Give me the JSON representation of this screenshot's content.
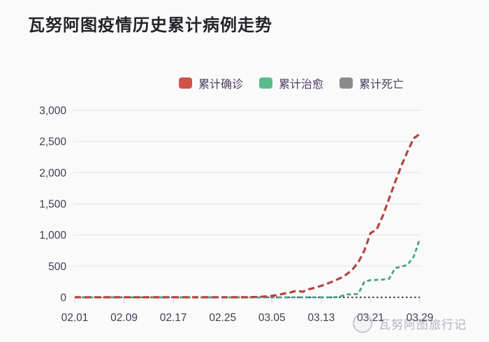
{
  "page": {
    "title": "瓦努阿图疫情历史累计病例走势",
    "background": "#fafafb"
  },
  "legend": {
    "items": [
      {
        "label": "累计确诊",
        "color": "#d25249"
      },
      {
        "label": "累计治愈",
        "color": "#5abc8e"
      },
      {
        "label": "累计死亡",
        "color": "#8b8b8b"
      }
    ]
  },
  "watermark": {
    "text": "瓦努阿图旅行记"
  },
  "chart_data": {
    "type": "line",
    "title": "瓦努阿图疫情历史累计病例走势",
    "xlabel": "",
    "ylabel": "",
    "x_start": "02.01",
    "x_end": "03.29",
    "x_tick_labels": [
      "02.01",
      "02.09",
      "02.17",
      "02.25",
      "03.05",
      "03.13",
      "03.21",
      "03.29"
    ],
    "x_tick_indices": [
      0,
      8,
      16,
      24,
      32,
      40,
      48,
      56
    ],
    "y_tick_labels": [
      "0",
      "500",
      "1,000",
      "1,500",
      "2,000",
      "2,500",
      "3,000"
    ],
    "y_tick_values": [
      0,
      500,
      1000,
      1500,
      2000,
      2500,
      3000
    ],
    "ylim": [
      0,
      3000
    ],
    "grid": "horizontal",
    "legend_position": "top-center",
    "line_style": "dashed",
    "colors": {
      "gridline": "#e5e5ea",
      "tick": "#d8d8df",
      "axis_text": "#3e3e52"
    },
    "series": [
      {
        "name": "累计确诊",
        "color": "#b4443f",
        "dash": "9 5",
        "width": 3.2,
        "values": [
          1,
          1,
          1,
          1,
          1,
          1,
          1,
          1,
          1,
          1,
          1,
          1,
          1,
          1,
          1,
          1,
          1,
          1,
          1,
          1,
          1,
          1,
          1,
          1,
          1,
          1,
          1,
          1,
          2,
          4,
          8,
          15,
          25,
          40,
          60,
          80,
          105,
          90,
          130,
          155,
          185,
          220,
          260,
          305,
          360,
          440,
          560,
          750,
          1030,
          1090,
          1310,
          1580,
          1850,
          2110,
          2340,
          2550,
          2620
        ]
      },
      {
        "name": "累计治愈",
        "color": "#46a28c",
        "dash": "6 4",
        "width": 2.8,
        "values": [
          0,
          0,
          0,
          0,
          0,
          0,
          0,
          0,
          0,
          0,
          0,
          0,
          0,
          0,
          0,
          0,
          0,
          0,
          0,
          0,
          0,
          0,
          0,
          0,
          0,
          0,
          0,
          0,
          0,
          0,
          0,
          0,
          0,
          0,
          0,
          0,
          0,
          0,
          0,
          0,
          0,
          0,
          0,
          10,
          45,
          50,
          55,
          250,
          275,
          280,
          285,
          295,
          470,
          490,
          520,
          650,
          940
        ]
      },
      {
        "name": "累计死亡",
        "color": "#4c4c58",
        "dash": "2.5 3.5",
        "width": 2.2,
        "values": [
          0,
          0,
          0,
          0,
          0,
          0,
          0,
          0,
          0,
          0,
          0,
          0,
          0,
          0,
          0,
          0,
          0,
          0,
          0,
          0,
          0,
          0,
          0,
          0,
          0,
          0,
          0,
          0,
          0,
          0,
          0,
          0,
          0,
          0,
          0,
          0,
          0,
          0,
          0,
          0,
          0,
          0,
          0,
          0,
          0,
          0,
          0,
          0,
          0,
          0,
          0,
          0,
          0,
          0,
          0,
          0,
          0
        ]
      }
    ]
  }
}
